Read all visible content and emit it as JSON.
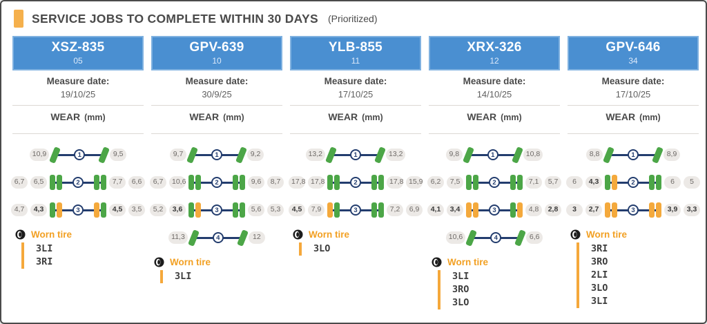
{
  "header": {
    "title": "SERVICE JOBS TO COMPLETE WITHIN 30 DAYS",
    "subtitle": "(Prioritized)"
  },
  "labels": {
    "measure_date": "Measure date:",
    "wear": "WEAR",
    "wear_unit": "(mm)",
    "worn_tire": "Worn tire"
  },
  "colors": {
    "header_blue": "#4A8FD1",
    "accent_orange": "#F2A023",
    "tire_ok_green": "#4CA647",
    "tire_worn_orange": "#F4A93C",
    "axle_navy": "#233D6E",
    "pill_bg": "#ECE9E6"
  },
  "chart_data": {
    "type": "table",
    "title": "SERVICE JOBS TO COMPLETE WITHIN 30 DAYS (Prioritized)",
    "value_unit": "mm",
    "notes": "Tire wear per axle; left/right arrays are ordered from outer to inner on the left side and inner to outer on the right side; worn=true shown bold with orange tire",
    "vehicles": [
      {
        "name": "XSZ-835",
        "code": "05",
        "measure_date": "19/10/25",
        "axles": [
          {
            "num": "1",
            "dual": false,
            "left": [
              {
                "pos": "L",
                "value": "10,9",
                "worn": false
              }
            ],
            "right": [
              {
                "pos": "R",
                "value": "9,5",
                "worn": false
              }
            ]
          },
          {
            "num": "2",
            "dual": true,
            "left": [
              {
                "pos": "LO",
                "value": "6,7",
                "worn": false
              },
              {
                "pos": "LI",
                "value": "6,5",
                "worn": false
              }
            ],
            "right": [
              {
                "pos": "RI",
                "value": "7,7",
                "worn": false
              },
              {
                "pos": "RO",
                "value": "6,6",
                "worn": false
              }
            ]
          },
          {
            "num": "3",
            "dual": true,
            "left": [
              {
                "pos": "LO",
                "value": "4,7",
                "worn": false
              },
              {
                "pos": "LI",
                "value": "4,3",
                "worn": true
              }
            ],
            "right": [
              {
                "pos": "RI",
                "value": "4,5",
                "worn": true
              },
              {
                "pos": "RO",
                "value": "3,5",
                "worn": false
              }
            ]
          }
        ],
        "worn_tires": [
          "3LI",
          "3RI"
        ]
      },
      {
        "name": "GPV-639",
        "code": "10",
        "measure_date": "30/9/25",
        "axles": [
          {
            "num": "1",
            "dual": false,
            "left": [
              {
                "pos": "L",
                "value": "9,7",
                "worn": false
              }
            ],
            "right": [
              {
                "pos": "R",
                "value": "9,2",
                "worn": false
              }
            ]
          },
          {
            "num": "2",
            "dual": true,
            "left": [
              {
                "pos": "LO",
                "value": "6,7",
                "worn": false
              },
              {
                "pos": "LI",
                "value": "10,6",
                "worn": false
              }
            ],
            "right": [
              {
                "pos": "RI",
                "value": "9,6",
                "worn": false
              },
              {
                "pos": "RO",
                "value": "8,7",
                "worn": false
              }
            ]
          },
          {
            "num": "3",
            "dual": true,
            "left": [
              {
                "pos": "LO",
                "value": "5,2",
                "worn": false
              },
              {
                "pos": "LI",
                "value": "3,6",
                "worn": true
              }
            ],
            "right": [
              {
                "pos": "RI",
                "value": "5,6",
                "worn": false
              },
              {
                "pos": "RO",
                "value": "5,3",
                "worn": false
              }
            ]
          },
          {
            "num": "4",
            "dual": false,
            "left": [
              {
                "pos": "L",
                "value": "11,3",
                "worn": false
              }
            ],
            "right": [
              {
                "pos": "R",
                "value": "12",
                "worn": false
              }
            ]
          }
        ],
        "worn_tires": [
          "3LI"
        ]
      },
      {
        "name": "YLB-855",
        "code": "11",
        "measure_date": "17/10/25",
        "axles": [
          {
            "num": "1",
            "dual": false,
            "left": [
              {
                "pos": "L",
                "value": "13,2",
                "worn": false
              }
            ],
            "right": [
              {
                "pos": "R",
                "value": "13,2",
                "worn": false
              }
            ]
          },
          {
            "num": "2",
            "dual": true,
            "left": [
              {
                "pos": "LO",
                "value": "17,8",
                "worn": false
              },
              {
                "pos": "LI",
                "value": "17,8",
                "worn": false
              }
            ],
            "right": [
              {
                "pos": "RI",
                "value": "17,8",
                "worn": false
              },
              {
                "pos": "RO",
                "value": "15,9",
                "worn": false
              }
            ]
          },
          {
            "num": "3",
            "dual": true,
            "left": [
              {
                "pos": "LO",
                "value": "4,5",
                "worn": true
              },
              {
                "pos": "LI",
                "value": "7,9",
                "worn": false
              }
            ],
            "right": [
              {
                "pos": "RI",
                "value": "7,2",
                "worn": false
              },
              {
                "pos": "RO",
                "value": "6,9",
                "worn": false
              }
            ]
          }
        ],
        "worn_tires": [
          "3LO"
        ]
      },
      {
        "name": "XRX-326",
        "code": "12",
        "measure_date": "14/10/25",
        "axles": [
          {
            "num": "1",
            "dual": false,
            "left": [
              {
                "pos": "L",
                "value": "9,8",
                "worn": false
              }
            ],
            "right": [
              {
                "pos": "R",
                "value": "10,8",
                "worn": false
              }
            ]
          },
          {
            "num": "2",
            "dual": true,
            "left": [
              {
                "pos": "LO",
                "value": "6,2",
                "worn": false
              },
              {
                "pos": "LI",
                "value": "7,5",
                "worn": false
              }
            ],
            "right": [
              {
                "pos": "RI",
                "value": "7,1",
                "worn": false
              },
              {
                "pos": "RO",
                "value": "5,7",
                "worn": false
              }
            ]
          },
          {
            "num": "3",
            "dual": true,
            "left": [
              {
                "pos": "LO",
                "value": "4,1",
                "worn": true
              },
              {
                "pos": "LI",
                "value": "3,4",
                "worn": true
              }
            ],
            "right": [
              {
                "pos": "RI",
                "value": "4,8",
                "worn": false
              },
              {
                "pos": "RO",
                "value": "2,8",
                "worn": true
              }
            ]
          },
          {
            "num": "4",
            "dual": false,
            "left": [
              {
                "pos": "L",
                "value": "10,6",
                "worn": false
              }
            ],
            "right": [
              {
                "pos": "R",
                "value": "6,6",
                "worn": false
              }
            ]
          }
        ],
        "worn_tires": [
          "3LI",
          "3RO",
          "3LO"
        ]
      },
      {
        "name": "GPV-646",
        "code": "34",
        "measure_date": "17/10/25",
        "axles": [
          {
            "num": "1",
            "dual": false,
            "left": [
              {
                "pos": "L",
                "value": "8,8",
                "worn": false
              }
            ],
            "right": [
              {
                "pos": "R",
                "value": "8,9",
                "worn": false
              }
            ]
          },
          {
            "num": "2",
            "dual": true,
            "left": [
              {
                "pos": "LO",
                "value": "6",
                "worn": false
              },
              {
                "pos": "LI",
                "value": "4,3",
                "worn": true
              }
            ],
            "right": [
              {
                "pos": "RI",
                "value": "6",
                "worn": false
              },
              {
                "pos": "RO",
                "value": "5",
                "worn": false
              }
            ]
          },
          {
            "num": "3",
            "dual": true,
            "left": [
              {
                "pos": "LO",
                "value": "3",
                "worn": true
              },
              {
                "pos": "LI",
                "value": "2,7",
                "worn": true
              }
            ],
            "right": [
              {
                "pos": "RI",
                "value": "3,9",
                "worn": true
              },
              {
                "pos": "RO",
                "value": "3,3",
                "worn": true
              }
            ]
          }
        ],
        "worn_tires": [
          "3RI",
          "3RO",
          "2LI",
          "3LO",
          "3LI"
        ]
      }
    ]
  }
}
